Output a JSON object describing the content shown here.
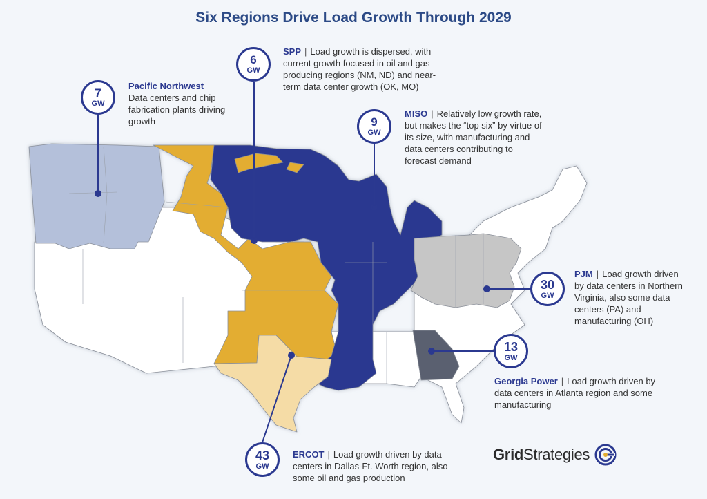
{
  "title": "Six Regions Drive Load Growth Through 2029",
  "colors": {
    "spp": "#e3ad30",
    "miso": "#2b3990",
    "pacific_northwest": "#b4c0da",
    "pjm": "#c6c6c6",
    "georgia_power": "#5a6170",
    "ercot": "#f5dca6",
    "other": "#ffffff",
    "accent": "#2b3990"
  },
  "regions": {
    "pnw": {
      "value": "7",
      "unit": "GW",
      "name": "Pacific Northwest",
      "text": "Data centers and chip fabrication plants driving growth"
    },
    "spp": {
      "value": "6",
      "unit": "GW",
      "name": "SPP",
      "text": "Load growth is dispersed, with current growth focused in oil and gas producing regions (NM, ND) and near-term data center growth (OK, MO)"
    },
    "miso": {
      "value": "9",
      "unit": "GW",
      "name": "MISO",
      "text": "Relatively low growth rate, but makes the “top six” by virtue of its size, with manufacturing and data centers contributing to forecast demand"
    },
    "pjm": {
      "value": "30",
      "unit": "GW",
      "name": "PJM",
      "text": "Load growth driven by data centers in Northern Virginia, also some data centers (PA) and manufacturing (OH)"
    },
    "georgia": {
      "value": "13",
      "unit": "GW",
      "name": "Georgia Power",
      "text": "Load growth driven by data centers in Atlanta region and some manufacturing"
    },
    "ercot": {
      "value": "43",
      "unit": "GW",
      "name": "ERCOT",
      "text": "Load growth driven by data centers in Dallas-Ft. Worth region, also some oil and gas production"
    }
  },
  "logo": {
    "part1": "Grid",
    "part2": "Strategies"
  }
}
